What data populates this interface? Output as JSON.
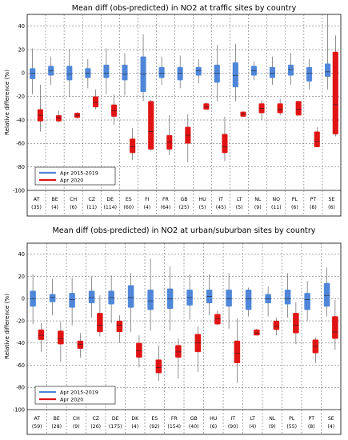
{
  "chart_data": [
    {
      "type": "box",
      "title": "Mean diff (obs-predicted) in NO2 at traffic sites by country",
      "ylabel": "Relative difference (%)",
      "ylim": [
        -100,
        50
      ],
      "yticks": [
        -100,
        -80,
        -60,
        -40,
        -20,
        0,
        20,
        40
      ],
      "grid": true,
      "legend_position": "bottom-left",
      "categories": [
        {
          "country": "AT",
          "n": "(35)"
        },
        {
          "country": "BE",
          "n": "(4)"
        },
        {
          "country": "CH",
          "n": "(6)"
        },
        {
          "country": "CZ",
          "n": "(11)"
        },
        {
          "country": "DE",
          "n": "(114)"
        },
        {
          "country": "ES",
          "n": "(60)"
        },
        {
          "country": "FI",
          "n": "(4)"
        },
        {
          "country": "FR",
          "n": "(64)"
        },
        {
          "country": "GB",
          "n": "(25)"
        },
        {
          "country": "HU",
          "n": "(5)"
        },
        {
          "country": "IT",
          "n": "(45)"
        },
        {
          "country": "LT",
          "n": "(5)"
        },
        {
          "country": "NL",
          "n": "(9)"
        },
        {
          "country": "NO",
          "n": "(11)"
        },
        {
          "country": "PL",
          "n": "(6)"
        },
        {
          "country": "PT",
          "n": "(8)"
        },
        {
          "country": "SE",
          "n": "(6)"
        }
      ],
      "series": [
        {
          "name": "Apr 2015-2019",
          "color": "#4f86d8",
          "boxes": [
            [
              -18,
              -5,
              0,
              4,
              21
            ],
            [
              -10,
              -2,
              2,
              6,
              14
            ],
            [
              -20,
              -6,
              -1,
              6,
              20
            ],
            [
              -13,
              -4,
              0,
              4,
              12
            ],
            [
              -18,
              -4,
              0,
              7,
              21
            ],
            [
              -19,
              -6,
              -1,
              7,
              17
            ],
            [
              -24,
              -16,
              -1,
              14,
              33
            ],
            [
              -10,
              -4,
              0,
              5,
              14
            ],
            [
              -13,
              -6,
              0,
              5,
              15
            ],
            [
              -9,
              -2,
              2,
              5,
              12
            ],
            [
              -24,
              -8,
              0,
              7,
              24
            ],
            [
              -24,
              -12,
              -2,
              9,
              25
            ],
            [
              -6,
              -2,
              2,
              6,
              10
            ],
            [
              -10,
              -4,
              0,
              5,
              14
            ],
            [
              -10,
              -2,
              3,
              7,
              17
            ],
            [
              -14,
              -7,
              0,
              5,
              12
            ],
            [
              -14,
              -3,
              1,
              8,
              56
            ]
          ]
        },
        {
          "name": "Apr 2020",
          "color": "#e01414",
          "boxes": [
            [
              -50,
              -41,
              -36,
              -31,
              -10
            ],
            [
              -42,
              -41,
              -38,
              -36,
              -32
            ],
            [
              -39,
              -38,
              -36,
              -34,
              -33
            ],
            [
              -31,
              -29,
              -25,
              -20,
              -14
            ],
            [
              -44,
              -37,
              -32,
              -27,
              -18
            ],
            [
              -74,
              -68,
              -63,
              -56,
              -47
            ],
            [
              -66,
              -65,
              -50,
              -24,
              -23
            ],
            [
              -70,
              -65,
              -59,
              -53,
              -36
            ],
            [
              -76,
              -60,
              -53,
              -46,
              -35
            ],
            [
              -31,
              -31,
              -29,
              -26,
              -25
            ],
            [
              -75,
              -68,
              -63,
              -52,
              -37
            ],
            [
              -37,
              -37,
              -35,
              -33,
              -33
            ],
            [
              -40,
              -34,
              -30,
              -26,
              -23
            ],
            [
              -36,
              -34,
              -31,
              -26,
              -22
            ],
            [
              -36,
              -36,
              -31,
              -24,
              -24
            ],
            [
              -63,
              -63,
              -58,
              -50,
              -46
            ],
            [
              -54,
              -52,
              -27,
              18,
              32
            ]
          ]
        }
      ]
    },
    {
      "type": "box",
      "title": "Mean diff (obs-predicted) in NO2 at urban/suburban sites by country",
      "ylabel": "Relative difference (%)",
      "ylim": [
        -100,
        50
      ],
      "yticks": [
        -100,
        -80,
        -60,
        -40,
        -20,
        0,
        20,
        40
      ],
      "grid": true,
      "legend_position": "bottom-left",
      "categories": [
        {
          "country": "AT",
          "n": "(59)"
        },
        {
          "country": "BE",
          "n": "(28)"
        },
        {
          "country": "CH",
          "n": "(9)"
        },
        {
          "country": "CZ",
          "n": "(26)"
        },
        {
          "country": "DE",
          "n": "(175)"
        },
        {
          "country": "DK",
          "n": "(4)"
        },
        {
          "country": "ES",
          "n": "(92)"
        },
        {
          "country": "FR",
          "n": "(154)"
        },
        {
          "country": "GB",
          "n": "(40)"
        },
        {
          "country": "HU",
          "n": "(6)"
        },
        {
          "country": "IT",
          "n": "(90)"
        },
        {
          "country": "LT",
          "n": "(4)"
        },
        {
          "country": "NL",
          "n": "(9)"
        },
        {
          "country": "PL",
          "n": "(55)"
        },
        {
          "country": "PT",
          "n": "(8)"
        },
        {
          "country": "SE",
          "n": "(4)"
        }
      ],
      "series": [
        {
          "name": "Apr 2015-2019",
          "color": "#4f86d8",
          "boxes": [
            [
              -23,
              -7,
              0,
              7,
              22
            ],
            [
              -15,
              -3,
              1,
              4,
              18
            ],
            [
              -24,
              -8,
              -1,
              5,
              19
            ],
            [
              -17,
              -4,
              1,
              7,
              20
            ],
            [
              -22,
              -5,
              1,
              7,
              21
            ],
            [
              -30,
              -8,
              1,
              12,
              23
            ],
            [
              -29,
              -10,
              -2,
              8,
              36
            ],
            [
              -29,
              -9,
              0,
              9,
              29
            ],
            [
              -19,
              -6,
              1,
              8,
              22
            ],
            [
              -15,
              -4,
              2,
              8,
              22
            ],
            [
              -27,
              -7,
              0,
              8,
              23
            ],
            [
              -16,
              -10,
              0,
              8,
              10
            ],
            [
              -16,
              -4,
              0,
              4,
              11
            ],
            [
              -17,
              -5,
              0,
              8,
              23
            ],
            [
              -20,
              -10,
              -1,
              5,
              16
            ],
            [
              -16,
              -7,
              3,
              14,
              28
            ]
          ]
        },
        {
          "name": "Apr 2020",
          "color": "#e01414",
          "boxes": [
            [
              -48,
              -37,
              -33,
              -28,
              -22
            ],
            [
              -57,
              -41,
              -36,
              -29,
              -21
            ],
            [
              -53,
              -45,
              -41,
              -38,
              -31
            ],
            [
              -34,
              -30,
              -24,
              -13,
              3
            ],
            [
              -40,
              -30,
              -24,
              -20,
              -15
            ],
            [
              -62,
              -53,
              -47,
              -40,
              -33
            ],
            [
              -74,
              -67,
              -62,
              -55,
              -42
            ],
            [
              -72,
              -53,
              -48,
              -42,
              -36
            ],
            [
              -66,
              -48,
              -40,
              -32,
              -25
            ],
            [
              -24,
              -23,
              -18,
              -14,
              -11
            ],
            [
              -76,
              -58,
              -49,
              -38,
              -18
            ],
            [
              -33,
              -33,
              -31,
              -28,
              -27
            ],
            [
              -33,
              -28,
              -25,
              -20,
              -17
            ],
            [
              -41,
              -31,
              -24,
              -13,
              -3
            ],
            [
              -58,
              -49,
              -43,
              -37,
              -35
            ],
            [
              -46,
              -36,
              -30,
              -16,
              -1
            ]
          ]
        }
      ]
    }
  ]
}
